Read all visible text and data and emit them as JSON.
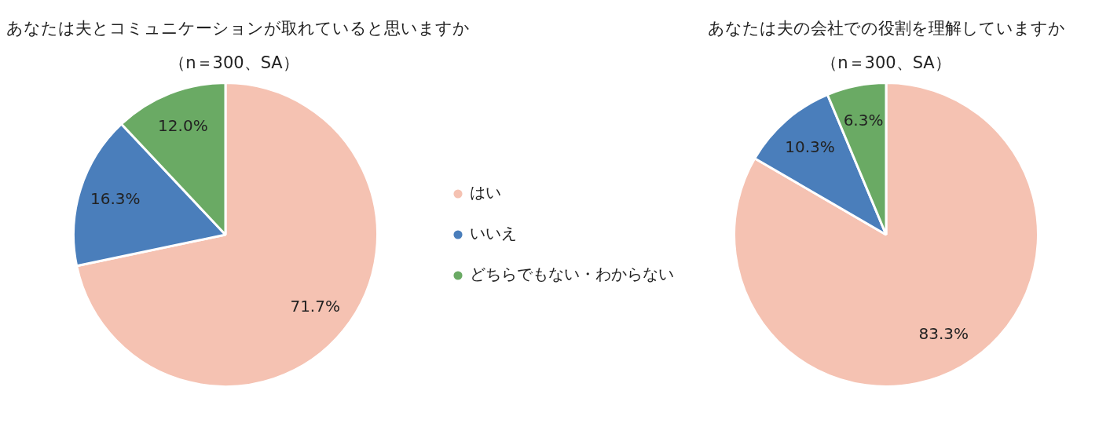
{
  "chart_data": [
    {
      "type": "pie",
      "title": "あなたは夫とコミュニケーションが取れていると思いますか",
      "subtitle": "（n＝300、SA）",
      "categories": [
        "はい",
        "いいえ",
        "どちらでもない・わからない"
      ],
      "values": [
        71.7,
        16.3,
        12.0
      ],
      "colors": [
        "#f5c2b2",
        "#4a7ebb",
        "#6aaa64"
      ],
      "value_labels": [
        "71.7%",
        "16.3%",
        "12.0%"
      ],
      "legend": "right"
    },
    {
      "type": "pie",
      "title": "あなたは夫の会社での役割を理解していますか",
      "subtitle": "（n＝300、SA）",
      "categories": [
        null,
        null,
        null
      ],
      "values": [
        83.3,
        10.3,
        6.3
      ],
      "colors": [
        "#f5c2b2",
        "#4a7ebb",
        "#6aaa64"
      ],
      "value_labels": [
        "83.3%",
        "10.3%",
        "6.3%"
      ]
    }
  ]
}
